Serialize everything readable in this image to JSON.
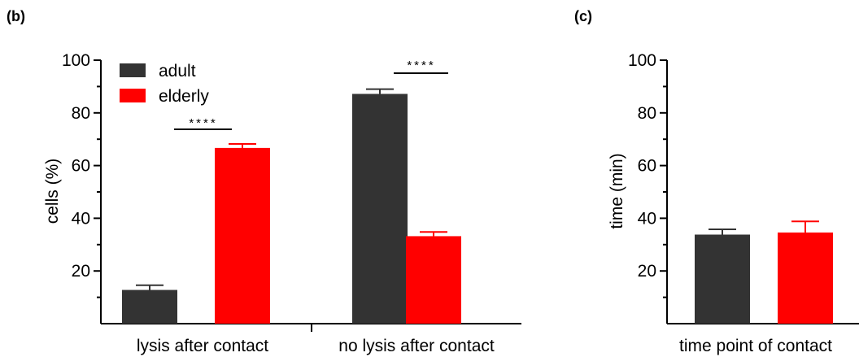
{
  "panels": {
    "b": {
      "label": "(b)"
    },
    "c": {
      "label": "(c)"
    }
  },
  "chart_data": [
    {
      "type": "bar",
      "panel": "(b)",
      "ylabel": "cells (%)",
      "ylim": [
        0,
        100
      ],
      "yticks": [
        "20",
        "40",
        "60",
        "80",
        "100"
      ],
      "categories": [
        "lysis after contact",
        "no lysis after contact"
      ],
      "series": [
        {
          "name": "adult",
          "color": "#333333",
          "values": [
            12.8,
            87.2
          ],
          "errors": [
            1.8,
            1.8
          ]
        },
        {
          "name": "elderly",
          "color": "#ff0000",
          "values": [
            66.7,
            33.2
          ],
          "errors": [
            1.5,
            1.6
          ]
        }
      ],
      "legend": {
        "position": "top-left",
        "entries": [
          "adult",
          "elderly"
        ]
      },
      "annotations": [
        {
          "text": "****",
          "category": "lysis after contact"
        },
        {
          "text": "****",
          "category": "no lysis after contact"
        }
      ],
      "grid": false
    },
    {
      "type": "bar",
      "panel": "(c)",
      "ylabel": "time (min)",
      "xlabel": "time point of contact",
      "ylim": [
        0,
        100
      ],
      "yticks": [
        "20",
        "40",
        "60",
        "80",
        "100"
      ],
      "series": [
        {
          "color": "#333333",
          "values": [
            33.8
          ],
          "errors": [
            2.0
          ]
        },
        {
          "color": "#ff0000",
          "values": [
            34.6
          ],
          "errors": [
            4.2
          ]
        }
      ],
      "grid": false
    }
  ]
}
